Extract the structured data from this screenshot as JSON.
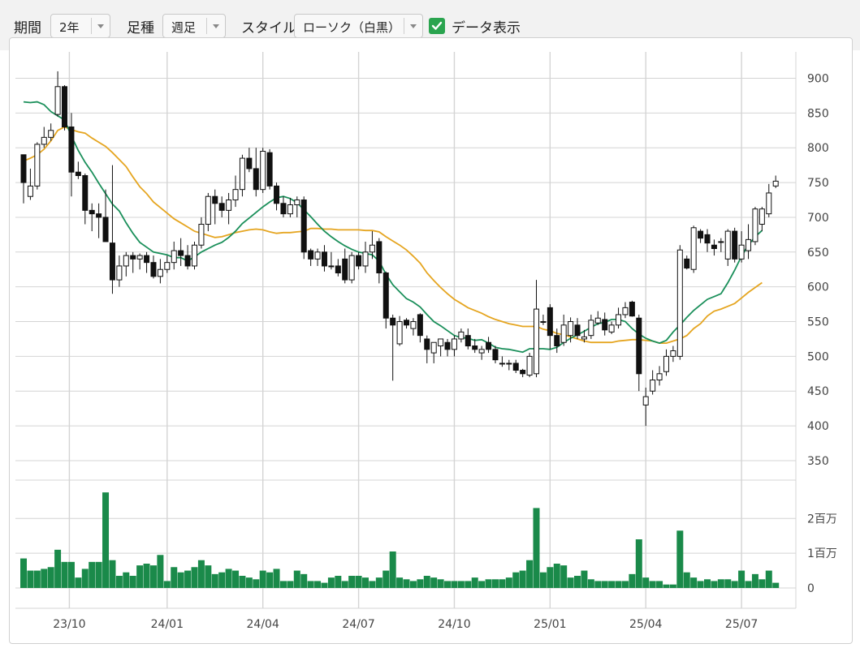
{
  "toolbar": {
    "period_label": "期間",
    "period_value": "2年",
    "type_label": "足種",
    "type_value": "週足",
    "style_label": "スタイル",
    "style_value": "ローソク（白黒）",
    "data_display_label": "データ表示",
    "data_display_checked": true
  },
  "colors": {
    "sma_short": "#1a8f5a",
    "sma_long": "#e5a520",
    "volume": "#1a8a4a",
    "candle_up_fill": "#ffffff",
    "candle_down_fill": "#111111",
    "grid": "#d4d4d4"
  },
  "chart_data": {
    "type": "candlestick",
    "x_ticks": [
      "23/10",
      "24/01",
      "24/04",
      "24/07",
      "24/10",
      "25/01",
      "25/04",
      "25/07"
    ],
    "price_axis": {
      "ticks": [
        "900",
        "850",
        "800",
        "750",
        "700",
        "650",
        "600",
        "550",
        "500",
        "450",
        "400",
        "350"
      ],
      "ylim": [
        325,
        925
      ]
    },
    "volume_axis": {
      "ticks": [
        "2百万",
        "1百万",
        "0"
      ],
      "ylim": [
        0,
        2.5
      ],
      "unit": "百万"
    },
    "grid": true,
    "ohlc": [
      [
        790,
        750,
        790,
        720
      ],
      [
        730,
        745,
        770,
        725
      ],
      [
        745,
        805,
        808,
        740
      ],
      [
        805,
        815,
        830,
        800
      ],
      [
        815,
        825,
        835,
        810
      ],
      [
        848,
        888,
        910,
        845
      ],
      [
        888,
        830,
        890,
        825
      ],
      [
        830,
        765,
        850,
        730
      ],
      [
        765,
        760,
        780,
        755
      ],
      [
        760,
        710,
        763,
        690
      ],
      [
        710,
        705,
        720,
        680
      ],
      [
        705,
        700,
        720,
        670
      ],
      [
        700,
        665,
        740,
        665
      ],
      [
        663,
        610,
        775,
        590
      ],
      [
        610,
        630,
        645,
        600
      ],
      [
        630,
        645,
        650,
        615
      ],
      [
        645,
        640,
        650,
        620
      ],
      [
        640,
        645,
        648,
        625
      ],
      [
        645,
        635,
        650,
        620
      ],
      [
        635,
        615,
        645,
        612
      ],
      [
        615,
        625,
        640,
        605
      ],
      [
        625,
        635,
        645,
        620
      ],
      [
        635,
        652,
        665,
        625
      ],
      [
        652,
        645,
        670,
        630
      ],
      [
        645,
        630,
        660,
        625
      ],
      [
        630,
        660,
        665,
        625
      ],
      [
        660,
        690,
        700,
        655
      ],
      [
        690,
        730,
        735,
        680
      ],
      [
        730,
        720,
        740,
        690
      ],
      [
        720,
        710,
        730,
        700
      ],
      [
        710,
        725,
        735,
        690
      ],
      [
        725,
        740,
        760,
        715
      ],
      [
        740,
        785,
        790,
        730
      ],
      [
        785,
        770,
        800,
        765
      ],
      [
        770,
        740,
        800,
        730
      ],
      [
        740,
        795,
        800,
        735
      ],
      [
        793,
        745,
        798,
        740
      ],
      [
        745,
        720,
        750,
        710
      ],
      [
        720,
        705,
        730,
        700
      ],
      [
        705,
        718,
        728,
        700
      ],
      [
        718,
        725,
        730,
        700
      ],
      [
        725,
        650,
        730,
        640
      ],
      [
        652,
        640,
        655,
        630
      ],
      [
        640,
        650,
        655,
        630
      ],
      [
        650,
        630,
        660,
        622
      ],
      [
        630,
        630,
        650,
        625
      ],
      [
        630,
        620,
        640,
        615
      ],
      [
        640,
        610,
        655,
        605
      ],
      [
        610,
        645,
        650,
        605
      ],
      [
        645,
        630,
        650,
        625
      ],
      [
        630,
        650,
        665,
        620
      ],
      [
        650,
        660,
        680,
        640
      ],
      [
        665,
        620,
        670,
        605
      ],
      [
        620,
        555,
        622,
        540
      ],
      [
        555,
        545,
        560,
        465
      ],
      [
        518,
        550,
        558,
        515
      ],
      [
        552,
        545,
        555,
        540
      ],
      [
        540,
        550,
        555,
        530
      ],
      [
        560,
        530,
        562,
        520
      ],
      [
        525,
        510,
        530,
        490
      ],
      [
        505,
        520,
        520,
        490
      ],
      [
        515,
        525,
        525,
        500
      ],
      [
        520,
        510,
        525,
        500
      ],
      [
        510,
        525,
        530,
        500
      ],
      [
        525,
        535,
        540,
        520
      ],
      [
        530,
        515,
        540,
        510
      ],
      [
        515,
        510,
        525,
        505
      ],
      [
        505,
        510,
        515,
        495
      ],
      [
        520,
        510,
        528,
        505
      ],
      [
        510,
        495,
        515,
        490
      ],
      [
        490,
        490,
        500,
        485
      ],
      [
        490,
        490,
        495,
        480
      ],
      [
        490,
        480,
        495,
        476
      ],
      [
        480,
        475,
        482,
        470
      ],
      [
        473,
        500,
        505,
        470
      ],
      [
        475,
        568,
        610,
        470
      ],
      [
        550,
        550,
        560,
        545
      ],
      [
        570,
        530,
        575,
        510
      ],
      [
        530,
        515,
        540,
        505
      ],
      [
        520,
        545,
        560,
        515
      ],
      [
        530,
        550,
        556,
        520
      ],
      [
        545,
        530,
        555,
        525
      ],
      [
        525,
        528,
        538,
        520
      ],
      [
        530,
        552,
        560,
        525
      ],
      [
        548,
        555,
        565,
        545
      ],
      [
        553,
        538,
        563,
        530
      ],
      [
        535,
        545,
        550,
        532
      ],
      [
        545,
        560,
        570,
        540
      ],
      [
        560,
        570,
        578,
        555
      ],
      [
        578,
        558,
        580,
        557
      ],
      [
        555,
        475,
        560,
        450
      ],
      [
        430,
        442,
        455,
        400
      ],
      [
        450,
        466,
        480,
        445
      ],
      [
        466,
        475,
        486,
        458
      ],
      [
        478,
        500,
        510,
        472
      ],
      [
        500,
        508,
        515,
        492
      ],
      [
        500,
        653,
        660,
        495
      ],
      [
        640,
        627,
        645,
        625
      ],
      [
        625,
        685,
        688,
        620
      ],
      [
        680,
        670,
        683,
        663
      ],
      [
        675,
        663,
        683,
        650
      ],
      [
        660,
        655,
        668,
        645
      ],
      [
        665,
        665,
        670,
        650
      ],
      [
        640,
        680,
        683,
        630
      ],
      [
        680,
        640,
        685,
        635
      ],
      [
        640,
        660,
        680,
        635
      ],
      [
        652,
        668,
        690,
        640
      ],
      [
        665,
        712,
        715,
        660
      ],
      [
        690,
        712,
        715,
        680
      ],
      [
        705,
        735,
        748,
        700
      ],
      [
        745,
        752,
        760,
        742
      ]
    ],
    "sma_short": [
      [
        0,
        866
      ],
      [
        1,
        865
      ],
      [
        2,
        866
      ],
      [
        3,
        862
      ],
      [
        4,
        852
      ],
      [
        5,
        846
      ],
      [
        6,
        840
      ],
      [
        7,
        817
      ],
      [
        8,
        796
      ],
      [
        9,
        779
      ],
      [
        10,
        765
      ],
      [
        11,
        749
      ],
      [
        12,
        734
      ],
      [
        13,
        719
      ],
      [
        14,
        709
      ],
      [
        15,
        692
      ],
      [
        16,
        677
      ],
      [
        17,
        664
      ],
      [
        18,
        657
      ],
      [
        19,
        650
      ],
      [
        20,
        648
      ],
      [
        21,
        646
      ],
      [
        22,
        642
      ],
      [
        23,
        642
      ],
      [
        24,
        637
      ],
      [
        25,
        643
      ],
      [
        26,
        650
      ],
      [
        27,
        655
      ],
      [
        28,
        660
      ],
      [
        29,
        664
      ],
      [
        30,
        671
      ],
      [
        31,
        680
      ],
      [
        32,
        691
      ],
      [
        33,
        699
      ],
      [
        34,
        707
      ],
      [
        35,
        715
      ],
      [
        36,
        722
      ],
      [
        37,
        728
      ],
      [
        38,
        730
      ],
      [
        39,
        727
      ],
      [
        40,
        721
      ],
      [
        41,
        711
      ],
      [
        42,
        701
      ],
      [
        43,
        690
      ],
      [
        44,
        680
      ],
      [
        45,
        672
      ],
      [
        46,
        665
      ],
      [
        47,
        659
      ],
      [
        48,
        654
      ],
      [
        49,
        650
      ],
      [
        50,
        648
      ],
      [
        51,
        646
      ],
      [
        52,
        637
      ],
      [
        53,
        618
      ],
      [
        54,
        603
      ],
      [
        55,
        593
      ],
      [
        56,
        583
      ],
      [
        57,
        578
      ],
      [
        58,
        571
      ],
      [
        59,
        560
      ],
      [
        60,
        550
      ],
      [
        61,
        544
      ],
      [
        62,
        537
      ],
      [
        63,
        530
      ],
      [
        64,
        527
      ],
      [
        65,
        526
      ],
      [
        66,
        523
      ],
      [
        67,
        524
      ],
      [
        68,
        519
      ],
      [
        69,
        513
      ],
      [
        70,
        511
      ],
      [
        71,
        510
      ],
      [
        72,
        508
      ],
      [
        73,
        506
      ],
      [
        74,
        511
      ],
      [
        75,
        511
      ],
      [
        76,
        511
      ],
      [
        77,
        510
      ],
      [
        78,
        513
      ],
      [
        79,
        520
      ],
      [
        80,
        526
      ],
      [
        81,
        531
      ],
      [
        82,
        536
      ],
      [
        83,
        542
      ],
      [
        84,
        547
      ],
      [
        85,
        549
      ],
      [
        86,
        553
      ],
      [
        87,
        553
      ],
      [
        88,
        550
      ],
      [
        89,
        540
      ],
      [
        90,
        532
      ],
      [
        91,
        526
      ],
      [
        92,
        522
      ],
      [
        93,
        519
      ],
      [
        94,
        523
      ],
      [
        95,
        535
      ],
      [
        96,
        545
      ],
      [
        97,
        556
      ],
      [
        98,
        566
      ],
      [
        99,
        574
      ],
      [
        100,
        582
      ],
      [
        101,
        586
      ],
      [
        102,
        590
      ],
      [
        103,
        606
      ],
      [
        104,
        624
      ],
      [
        105,
        644
      ],
      [
        106,
        660
      ],
      [
        107,
        672
      ],
      [
        108,
        681
      ]
    ],
    "sma_long": [
      [
        0,
        781
      ],
      [
        1,
        785
      ],
      [
        2,
        790
      ],
      [
        3,
        798
      ],
      [
        4,
        810
      ],
      [
        5,
        825
      ],
      [
        6,
        830
      ],
      [
        7,
        826
      ],
      [
        8,
        823
      ],
      [
        9,
        821
      ],
      [
        10,
        814
      ],
      [
        11,
        808
      ],
      [
        12,
        802
      ],
      [
        13,
        793
      ],
      [
        14,
        783
      ],
      [
        15,
        773
      ],
      [
        16,
        758
      ],
      [
        17,
        744
      ],
      [
        18,
        734
      ],
      [
        19,
        722
      ],
      [
        20,
        714
      ],
      [
        21,
        706
      ],
      [
        22,
        698
      ],
      [
        23,
        692
      ],
      [
        24,
        686
      ],
      [
        25,
        680
      ],
      [
        26,
        677
      ],
      [
        27,
        674
      ],
      [
        28,
        671
      ],
      [
        29,
        672
      ],
      [
        30,
        675
      ],
      [
        31,
        678
      ],
      [
        32,
        680
      ],
      [
        33,
        682
      ],
      [
        34,
        683
      ],
      [
        35,
        682
      ],
      [
        36,
        679
      ],
      [
        37,
        677
      ],
      [
        38,
        678
      ],
      [
        39,
        678
      ],
      [
        40,
        679
      ],
      [
        41,
        680
      ],
      [
        42,
        684
      ],
      [
        43,
        684
      ],
      [
        44,
        683
      ],
      [
        45,
        683
      ],
      [
        46,
        682
      ],
      [
        47,
        682
      ],
      [
        48,
        682
      ],
      [
        49,
        682
      ],
      [
        50,
        681
      ],
      [
        51,
        681
      ],
      [
        52,
        679
      ],
      [
        53,
        672
      ],
      [
        54,
        666
      ],
      [
        55,
        660
      ],
      [
        56,
        653
      ],
      [
        57,
        644
      ],
      [
        58,
        634
      ],
      [
        59,
        620
      ],
      [
        60,
        609
      ],
      [
        61,
        599
      ],
      [
        62,
        590
      ],
      [
        63,
        582
      ],
      [
        64,
        576
      ],
      [
        65,
        570
      ],
      [
        66,
        566
      ],
      [
        67,
        562
      ],
      [
        68,
        557
      ],
      [
        69,
        553
      ],
      [
        70,
        550
      ],
      [
        71,
        547
      ],
      [
        72,
        545
      ],
      [
        73,
        543
      ],
      [
        74,
        543
      ],
      [
        75,
        543
      ],
      [
        76,
        539
      ],
      [
        77,
        537
      ],
      [
        78,
        533
      ],
      [
        79,
        531
      ],
      [
        80,
        528
      ],
      [
        81,
        525
      ],
      [
        82,
        522
      ],
      [
        83,
        520
      ],
      [
        84,
        520
      ],
      [
        85,
        520
      ],
      [
        86,
        520
      ],
      [
        87,
        522
      ],
      [
        88,
        523
      ],
      [
        89,
        524
      ],
      [
        90,
        524
      ],
      [
        91,
        523
      ],
      [
        92,
        522
      ],
      [
        93,
        519
      ],
      [
        94,
        519
      ],
      [
        95,
        522
      ],
      [
        96,
        525
      ],
      [
        97,
        530
      ],
      [
        98,
        540
      ],
      [
        99,
        547
      ],
      [
        100,
        558
      ],
      [
        101,
        565
      ],
      [
        102,
        568
      ],
      [
        103,
        572
      ],
      [
        104,
        576
      ],
      [
        105,
        584
      ],
      [
        106,
        592
      ],
      [
        107,
        599
      ],
      [
        108,
        606
      ]
    ],
    "volume": [
      0.85,
      0.5,
      0.5,
      0.55,
      0.6,
      1.1,
      0.75,
      0.75,
      0.3,
      0.55,
      0.75,
      0.75,
      2.75,
      0.8,
      0.35,
      0.45,
      0.35,
      0.65,
      0.7,
      0.65,
      0.95,
      0.2,
      0.6,
      0.45,
      0.5,
      0.6,
      0.8,
      0.65,
      0.4,
      0.45,
      0.55,
      0.5,
      0.35,
      0.3,
      0.25,
      0.5,
      0.45,
      0.55,
      0.2,
      0.2,
      0.5,
      0.4,
      0.2,
      0.2,
      0.15,
      0.3,
      0.35,
      0.2,
      0.35,
      0.35,
      0.3,
      0.2,
      0.3,
      0.5,
      1.05,
      0.3,
      0.25,
      0.2,
      0.25,
      0.35,
      0.3,
      0.25,
      0.2,
      0.2,
      0.2,
      0.2,
      0.3,
      0.2,
      0.25,
      0.25,
      0.25,
      0.3,
      0.45,
      0.5,
      0.8,
      2.3,
      0.45,
      0.6,
      0.7,
      0.65,
      0.3,
      0.35,
      0.5,
      0.25,
      0.2,
      0.2,
      0.2,
      0.2,
      0.2,
      0.4,
      1.4,
      0.3,
      0.2,
      0.2,
      0.1,
      0.1,
      1.65,
      0.45,
      0.3,
      0.2,
      0.25,
      0.2,
      0.25,
      0.25,
      0.2,
      0.5,
      0.2,
      0.4,
      0.25,
      0.5,
      0.15
    ]
  }
}
